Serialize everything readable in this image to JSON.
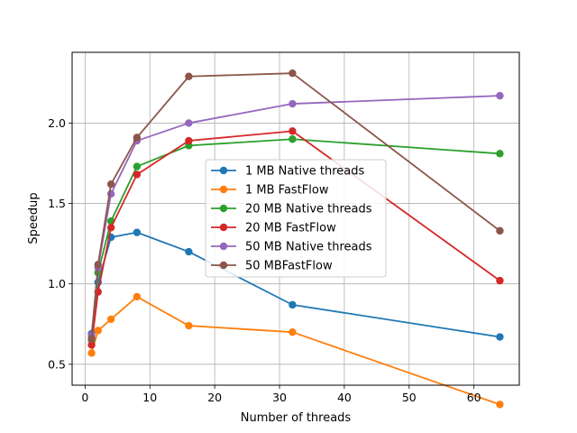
{
  "chart_data": {
    "type": "line",
    "title": "",
    "xlabel": "Number of threads",
    "ylabel": "Speedup",
    "xlim": [
      -2,
      67
    ],
    "ylim": [
      0.37,
      2.44
    ],
    "xticks": [
      0,
      10,
      20,
      30,
      40,
      50,
      60
    ],
    "yticks": [
      0.5,
      1.0,
      1.5,
      2.0
    ],
    "xtick_labels": [
      "0",
      "10",
      "20",
      "30",
      "40",
      "50",
      "60"
    ],
    "ytick_labels": [
      "0.5",
      "1.0",
      "1.5",
      "2.0"
    ],
    "grid": true,
    "legend_position": "center",
    "series": [
      {
        "name": "1 MB Native threads",
        "color": "#1f77b4",
        "x": [
          1,
          2,
          4,
          8,
          16,
          32,
          64
        ],
        "y": [
          0.69,
          1.01,
          1.29,
          1.32,
          1.2,
          0.87,
          0.67
        ]
      },
      {
        "name": "1 MB FastFlow",
        "color": "#ff7f0e",
        "x": [
          1,
          2,
          4,
          8,
          16,
          32,
          64
        ],
        "y": [
          0.57,
          0.71,
          0.78,
          0.92,
          0.74,
          0.7,
          0.25
        ]
      },
      {
        "name": "20 MB Native threads",
        "color": "#2ca02c",
        "x": [
          1,
          2,
          4,
          8,
          16,
          32,
          64
        ],
        "y": [
          0.65,
          1.07,
          1.39,
          1.73,
          1.86,
          1.9,
          1.81
        ]
      },
      {
        "name": "20 MB FastFlow",
        "color": "#d62728",
        "x": [
          1,
          2,
          4,
          8,
          16,
          32,
          64
        ],
        "y": [
          0.62,
          0.95,
          1.35,
          1.68,
          1.89,
          1.95,
          1.02
        ]
      },
      {
        "name": "50 MB Native threads",
        "color": "#9467bd",
        "x": [
          1,
          2,
          4,
          8,
          16,
          32,
          64
        ],
        "y": [
          0.68,
          1.1,
          1.56,
          1.89,
          2.0,
          2.12,
          2.17
        ]
      },
      {
        "name": "50 MBFastFlow",
        "color": "#8c564b",
        "x": [
          1,
          2,
          4,
          8,
          16,
          32,
          64
        ],
        "y": [
          0.66,
          1.12,
          1.62,
          1.91,
          2.29,
          2.31,
          1.33
        ]
      }
    ]
  }
}
